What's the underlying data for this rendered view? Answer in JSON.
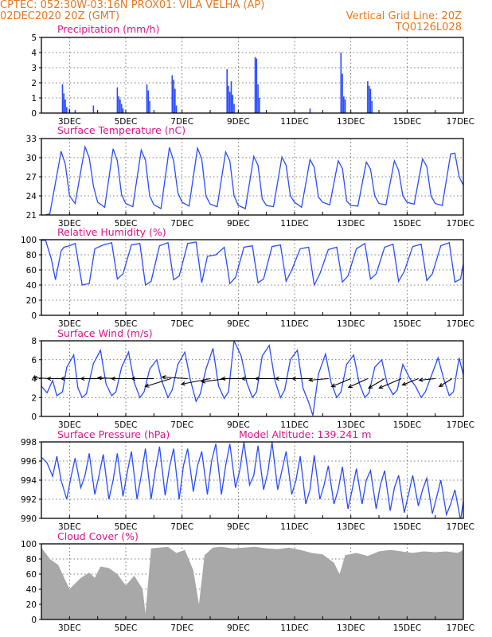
{
  "header": {
    "line1": "CPTEC:   052:30W-03:16N   PROX01: VILA VELHA (AP)",
    "line2_left": "02DEC2020 20Z (GMT)",
    "line2_right": "Vertical Grid Line: 20Z",
    "line3_right": "TQ0126L028"
  },
  "colors": {
    "header": "#e87722",
    "title": "#e0148c",
    "series": "#2a4bff",
    "cloud": "#a8a8a8"
  },
  "x_ticks": [
    "3DEC",
    "5DEC",
    "7DEC",
    "9DEC",
    "11DEC",
    "13DEC",
    "15DEC",
    "17DEC"
  ],
  "chart_data": [
    {
      "type": "bar",
      "title": "Precipitation (mm/h)",
      "ylim": [
        0,
        5
      ],
      "yticks": [
        0,
        1,
        2,
        3,
        4,
        5
      ],
      "x": [
        0.75,
        0.8,
        0.85,
        0.9,
        1.0,
        1.2,
        1.85,
        2.7,
        2.75,
        2.8,
        2.85,
        2.9,
        3.75,
        3.8,
        3.85,
        4.65,
        4.7,
        4.75,
        4.8,
        6.6,
        6.65,
        6.7,
        6.75,
        6.8,
        6.85,
        7.6,
        7.65,
        7.7,
        7.75,
        9.55,
        10.65,
        10.7,
        10.75,
        10.8,
        11.6,
        11.65,
        11.7,
        11.75
      ],
      "values": [
        1.9,
        1.3,
        0.9,
        0.4,
        0.3,
        0.2,
        0.5,
        1.7,
        1.1,
        0.9,
        0.6,
        0.3,
        1.9,
        1.5,
        0.8,
        2.5,
        2.2,
        1.6,
        0.5,
        2.9,
        1.8,
        1.4,
        2.1,
        1.2,
        0.6,
        3.7,
        3.6,
        1.9,
        1.0,
        0.3,
        4.0,
        2.6,
        1.1,
        0.9,
        2.1,
        1.8,
        1.6,
        0.8
      ]
    },
    {
      "type": "line",
      "title": "Surface Temperature (nC)",
      "ylim": [
        21,
        33
      ],
      "yticks": [
        21,
        24,
        27,
        30,
        33
      ],
      "x": [
        0.0,
        0.3,
        0.6,
        0.7,
        0.85,
        1.0,
        1.2,
        1.55,
        1.7,
        1.85,
        2.0,
        2.25,
        2.55,
        2.7,
        2.85,
        3.0,
        3.25,
        3.55,
        3.7,
        3.85,
        4.0,
        4.25,
        4.55,
        4.7,
        4.85,
        5.0,
        5.25,
        5.55,
        5.7,
        5.85,
        6.0,
        6.25,
        6.55,
        6.7,
        6.85,
        7.0,
        7.25,
        7.55,
        7.7,
        7.85,
        8.0,
        8.25,
        8.55,
        8.7,
        8.85,
        9.0,
        9.25,
        9.55,
        9.7,
        9.85,
        10.0,
        10.25,
        10.55,
        10.7,
        10.85,
        11.0,
        11.25,
        11.55,
        11.7,
        11.85,
        12.0,
        12.25,
        12.55,
        12.7,
        12.85,
        13.0,
        13.25,
        13.55,
        13.7,
        13.85,
        14.0,
        14.25,
        14.55,
        14.7,
        14.85,
        15.0
      ],
      "values": [
        20.8,
        21.2,
        28.5,
        31.0,
        29.0,
        24.0,
        22.8,
        31.7,
        30.0,
        25.5,
        23.0,
        22.2,
        31.4,
        29.5,
        24.2,
        22.8,
        22.3,
        31.2,
        29.6,
        24.0,
        22.6,
        22.0,
        31.6,
        29.5,
        24.5,
        23.0,
        22.4,
        31.5,
        29.8,
        24.0,
        22.7,
        22.3,
        30.9,
        29.5,
        24.0,
        22.5,
        22.0,
        30.2,
        28.8,
        23.5,
        22.5,
        22.3,
        30.1,
        28.8,
        24.0,
        23.0,
        22.2,
        29.7,
        28.5,
        23.8,
        23.0,
        22.6,
        29.5,
        28.3,
        23.2,
        22.5,
        22.4,
        29.3,
        28.2,
        24.0,
        22.8,
        22.6,
        29.5,
        28.0,
        24.0,
        23.0,
        22.7,
        29.8,
        28.6,
        24.0,
        22.8,
        22.5,
        30.6,
        30.7,
        27.0,
        25.7
      ]
    },
    {
      "type": "line",
      "title": "Relative Humidity (%)",
      "ylim": [
        0,
        100
      ],
      "yticks": [
        0,
        20,
        40,
        60,
        80,
        100
      ],
      "x": [
        0.0,
        0.15,
        0.35,
        0.5,
        0.7,
        0.8,
        1.0,
        1.2,
        1.45,
        1.7,
        1.9,
        2.2,
        2.5,
        2.7,
        2.9,
        3.2,
        3.5,
        3.7,
        3.9,
        4.2,
        4.5,
        4.7,
        4.9,
        5.2,
        5.5,
        5.7,
        5.9,
        6.2,
        6.5,
        6.7,
        6.9,
        7.2,
        7.5,
        7.7,
        7.9,
        8.2,
        8.5,
        8.7,
        8.9,
        9.2,
        9.5,
        9.7,
        9.9,
        10.2,
        10.5,
        10.7,
        10.9,
        11.2,
        11.5,
        11.7,
        11.9,
        12.2,
        12.5,
        12.7,
        12.9,
        13.2,
        13.5,
        13.7,
        13.9,
        14.2,
        14.5,
        14.7,
        14.9,
        15.0
      ],
      "values": [
        99,
        99,
        75,
        47,
        85,
        90,
        92,
        95,
        40,
        42,
        88,
        93,
        96,
        48,
        55,
        93,
        95,
        40,
        45,
        92,
        96,
        47,
        52,
        95,
        97,
        43,
        78,
        80,
        90,
        42,
        50,
        90,
        92,
        43,
        48,
        91,
        93,
        45,
        60,
        88,
        90,
        40,
        55,
        87,
        90,
        44,
        52,
        88,
        95,
        48,
        55,
        90,
        94,
        45,
        58,
        91,
        94,
        46,
        55,
        92,
        96,
        44,
        48,
        68
      ]
    },
    {
      "type": "line",
      "title": "Surface Wind (m/s)",
      "ylim": [
        0,
        8
      ],
      "yticks": [
        0,
        2,
        4,
        6,
        8
      ],
      "x": [
        0.0,
        0.2,
        0.4,
        0.55,
        0.75,
        0.9,
        1.15,
        1.3,
        1.45,
        1.6,
        1.85,
        2.1,
        2.3,
        2.5,
        2.65,
        2.85,
        3.1,
        3.3,
        3.5,
        3.65,
        3.85,
        4.1,
        4.3,
        4.5,
        4.65,
        4.85,
        5.1,
        5.3,
        5.5,
        5.65,
        5.85,
        6.1,
        6.3,
        6.5,
        6.65,
        6.85,
        7.1,
        7.3,
        7.5,
        7.65,
        7.85,
        8.1,
        8.3,
        8.5,
        8.65,
        8.85,
        9.1,
        9.3,
        9.5,
        9.65,
        9.85,
        10.1,
        10.3,
        10.5,
        10.65,
        10.85,
        11.1,
        11.3,
        11.5,
        11.65,
        11.85,
        12.1,
        12.3,
        12.5,
        12.65,
        12.85,
        13.1,
        13.3,
        13.5,
        13.65,
        13.85,
        14.1,
        14.3,
        14.5,
        14.65,
        14.85,
        15.0
      ],
      "values": [
        3.2,
        2.5,
        3.8,
        2.2,
        2.6,
        5.2,
        6.5,
        3.0,
        2.0,
        2.4,
        5.6,
        7.0,
        3.4,
        2.2,
        2.6,
        5.2,
        6.8,
        3.6,
        2.0,
        2.6,
        5.0,
        6.0,
        3.6,
        2.0,
        2.8,
        5.5,
        6.8,
        3.8,
        1.6,
        2.4,
        5.0,
        7.2,
        3.2,
        1.9,
        2.6,
        8.0,
        6.4,
        3.6,
        2.0,
        2.6,
        6.4,
        7.5,
        3.8,
        2.0,
        2.8,
        6.0,
        7.0,
        3.0,
        1.5,
        0.1,
        4.5,
        6.6,
        3.6,
        2.0,
        2.6,
        5.5,
        6.5,
        3.5,
        2.0,
        2.5,
        5.2,
        6.0,
        3.4,
        2.3,
        2.8,
        5.5,
        4.0,
        3.2,
        2.0,
        2.6,
        4.2,
        6.2,
        4.0,
        2.2,
        2.6,
        6.2,
        4.4
      ],
      "arrows": [
        {
          "x": 0.4,
          "u": -0.6,
          "v": 0.05
        },
        {
          "x": 1.0,
          "u": -0.7,
          "v": 0.0
        },
        {
          "x": 1.6,
          "u": -0.8,
          "v": 0.0
        },
        {
          "x": 2.2,
          "u": -0.7,
          "v": 0.0
        },
        {
          "x": 2.8,
          "u": -0.7,
          "v": 0.05
        },
        {
          "x": 3.4,
          "u": -0.8,
          "v": 0.0
        },
        {
          "x": 4.0,
          "u": -0.7,
          "v": 0.0
        },
        {
          "x": 4.6,
          "u": -0.8,
          "v": -0.5
        },
        {
          "x": 5.2,
          "u": -0.8,
          "v": 0.1
        },
        {
          "x": 6.0,
          "u": -0.9,
          "v": -0.35
        },
        {
          "x": 6.6,
          "u": -0.8,
          "v": -0.2
        },
        {
          "x": 7.2,
          "u": -0.7,
          "v": 0.0
        },
        {
          "x": 7.8,
          "u": -0.6,
          "v": 0.0
        },
        {
          "x": 8.4,
          "u": -0.7,
          "v": 0.0
        },
        {
          "x": 9.0,
          "u": -0.6,
          "v": 0.0
        },
        {
          "x": 9.6,
          "u": -0.6,
          "v": 0.0
        },
        {
          "x": 10.2,
          "u": -0.6,
          "v": -0.1
        },
        {
          "x": 11.0,
          "u": -0.6,
          "v": -0.5
        },
        {
          "x": 11.6,
          "u": -0.6,
          "v": -0.55
        },
        {
          "x": 12.2,
          "u": -0.5,
          "v": -0.6
        },
        {
          "x": 12.8,
          "u": -0.7,
          "v": -0.6
        },
        {
          "x": 13.4,
          "u": -0.5,
          "v": -0.4
        },
        {
          "x": 14.0,
          "u": -0.5,
          "v": -0.1
        },
        {
          "x": 14.6,
          "u": -0.4,
          "v": -0.5
        }
      ]
    },
    {
      "type": "line",
      "title": "Surface Pressure (hPa)",
      "annotation": "Model Altitude: 139.241 m",
      "ylim": [
        990,
        998
      ],
      "yticks": [
        990,
        992,
        994,
        996,
        998
      ],
      "x": [
        0.0,
        0.2,
        0.4,
        0.55,
        0.7,
        0.9,
        1.05,
        1.2,
        1.4,
        1.55,
        1.7,
        1.9,
        2.05,
        2.2,
        2.4,
        2.55,
        2.7,
        2.9,
        3.05,
        3.2,
        3.4,
        3.55,
        3.7,
        3.9,
        4.05,
        4.2,
        4.4,
        4.55,
        4.7,
        4.9,
        5.05,
        5.2,
        5.4,
        5.55,
        5.7,
        5.9,
        6.05,
        6.2,
        6.4,
        6.55,
        6.7,
        6.9,
        7.05,
        7.2,
        7.4,
        7.55,
        7.7,
        7.9,
        8.05,
        8.2,
        8.4,
        8.55,
        8.7,
        8.9,
        9.05,
        9.2,
        9.4,
        9.55,
        9.7,
        9.9,
        10.05,
        10.2,
        10.4,
        10.55,
        10.7,
        10.9,
        11.05,
        11.2,
        11.4,
        11.55,
        11.7,
        11.9,
        12.05,
        12.2,
        12.4,
        12.55,
        12.7,
        12.9,
        13.05,
        13.2,
        13.4,
        13.55,
        13.7,
        13.9,
        14.05,
        14.2,
        14.4,
        14.55,
        14.7,
        14.9,
        15.0
      ],
      "values": [
        996.4,
        995.8,
        994.4,
        996.5,
        994.0,
        992.0,
        994.3,
        996.3,
        993.2,
        994.5,
        996.8,
        992.5,
        994.5,
        996.7,
        992.0,
        994.0,
        996.8,
        992.3,
        994.8,
        997.0,
        992.0,
        994.5,
        997.3,
        992.0,
        995.0,
        997.5,
        992.4,
        995.3,
        997.3,
        992.0,
        995.5,
        997.3,
        992.8,
        995.5,
        997.0,
        992.5,
        996.0,
        997.8,
        992.5,
        995.5,
        997.8,
        993.2,
        995.0,
        998.0,
        993.5,
        994.5,
        997.6,
        993.0,
        994.8,
        998.0,
        993.0,
        995.0,
        997.0,
        992.5,
        994.0,
        996.5,
        991.5,
        993.0,
        996.6,
        992.0,
        993.5,
        995.5,
        991.5,
        993.0,
        995.4,
        991.0,
        993.0,
        995.2,
        991.5,
        994.0,
        995.0,
        991.0,
        993.5,
        995.0,
        990.8,
        993.2,
        994.5,
        990.6,
        992.5,
        994.5,
        991.3,
        993.0,
        994.2,
        990.5,
        992.2,
        994.0,
        990.4,
        991.5,
        993.0,
        989.8,
        991.8
      ]
    },
    {
      "type": "area",
      "title": "Cloud Cover (%)",
      "ylim": [
        0,
        100
      ],
      "yticks": [
        0,
        20,
        40,
        60,
        80,
        100
      ],
      "x": [
        0.0,
        0.3,
        0.6,
        1.0,
        1.4,
        1.7,
        1.9,
        2.1,
        2.4,
        2.7,
        3.0,
        3.3,
        3.6,
        3.7,
        3.9,
        4.2,
        4.5,
        4.8,
        5.1,
        5.4,
        5.6,
        5.8,
        6.1,
        6.4,
        6.8,
        7.2,
        7.6,
        8.0,
        8.4,
        8.8,
        9.2,
        9.6,
        10.0,
        10.4,
        10.6,
        10.8,
        11.2,
        11.6,
        12.0,
        12.4,
        12.8,
        13.2,
        13.6,
        14.0,
        14.4,
        14.8,
        15.0
      ],
      "values": [
        95,
        80,
        72,
        40,
        55,
        62,
        55,
        70,
        68,
        60,
        45,
        58,
        40,
        8,
        94,
        95,
        96,
        88,
        92,
        65,
        20,
        85,
        95,
        96,
        94,
        95,
        96,
        94,
        93,
        95,
        92,
        88,
        86,
        75,
        60,
        85,
        88,
        84,
        90,
        92,
        90,
        88,
        90,
        89,
        90,
        88,
        92
      ]
    }
  ]
}
